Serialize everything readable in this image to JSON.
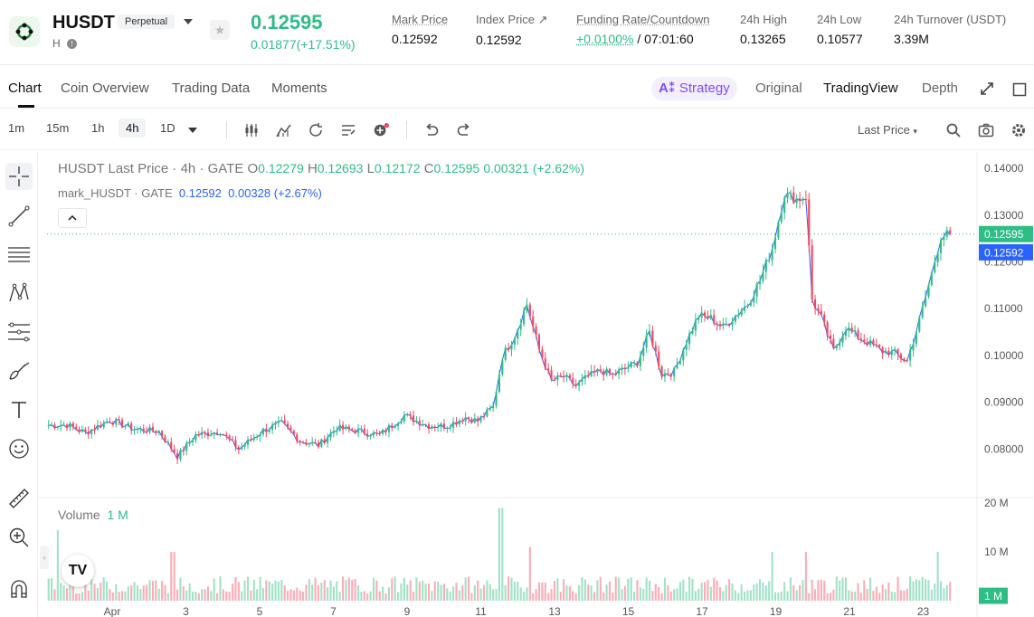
{
  "header": {
    "symbol": "HUSDT",
    "badge": "Perpetual",
    "sub": "H",
    "last_price": "0.12595",
    "change": "0.01877(+17.51%)",
    "stats": [
      {
        "label": "Mark Price",
        "value": "0.12592"
      },
      {
        "label": "Index Price ↗",
        "value": "0.12592"
      },
      {
        "label": "Funding Rate/Countdown",
        "value_green": "+0.0100%",
        "value_rest": " / 07:01:60"
      },
      {
        "label": "24h High",
        "value": "0.13265"
      },
      {
        "label": "24h Low",
        "value": "0.10577"
      },
      {
        "label": "24h Turnover (USDT)",
        "value": "3.39M"
      }
    ]
  },
  "tabs": {
    "items": [
      "Chart",
      "Coin Overview",
      "Trading Data",
      "Moments"
    ],
    "strategy": "Strategy",
    "views": [
      "Original",
      "TradingView",
      "Depth"
    ]
  },
  "toolbar": {
    "timeframes": [
      "1m",
      "15m",
      "1h",
      "4h",
      "1D"
    ],
    "active_timeframe": "4h",
    "price_type": "Last Price"
  },
  "legend": {
    "main_title": "HUSDT Last Price · 4h · GATE",
    "o_label": "O",
    "o": "0.12279",
    "h_label": "H",
    "h": "0.12693",
    "l_label": "L",
    "l": "0.12172",
    "c_label": "C",
    "c": "0.12595",
    "chg": "0.00321 (+2.62%)",
    "mark_title": "mark_HUSDT · GATE",
    "mark_value": "0.12592",
    "mark_chg": "0.00328 (+2.67%)",
    "volume_label": "Volume",
    "volume_value": "1 M"
  },
  "chart_data": {
    "type": "candlestick",
    "timeframe": "4h",
    "x_tick_labels": [
      "Apr",
      "3",
      "5",
      "7",
      "9",
      "11",
      "13",
      "15",
      "17",
      "19",
      "21",
      "23"
    ],
    "price_axis_labels": [
      "0.14000",
      "0.13000",
      "0.12000",
      "0.11000",
      "0.10000",
      "0.09000",
      "0.08000"
    ],
    "price_axis_values": [
      0.14,
      0.13,
      0.12,
      0.11,
      0.1,
      0.09,
      0.08
    ],
    "ylim": [
      0.07,
      0.1435
    ],
    "last_price_tag": "0.12595",
    "mark_price_tag": "0.12592",
    "volume_axis_labels": [
      "20 M",
      "10 M"
    ],
    "volume_axis_values": [
      20,
      10
    ],
    "volume_tag": "1 M",
    "volume_ylim_millions": [
      0,
      20
    ],
    "close_anchors": [
      [
        0,
        0.0851
      ],
      [
        6,
        0.0852
      ],
      [
        12,
        0.0835
      ],
      [
        20,
        0.0862
      ],
      [
        28,
        0.0843
      ],
      [
        36,
        0.0838
      ],
      [
        42,
        0.0784
      ],
      [
        48,
        0.083
      ],
      [
        56,
        0.0838
      ],
      [
        62,
        0.08
      ],
      [
        70,
        0.084
      ],
      [
        76,
        0.0855
      ],
      [
        82,
        0.0818
      ],
      [
        88,
        0.0808
      ],
      [
        94,
        0.0845
      ],
      [
        100,
        0.084
      ],
      [
        108,
        0.083
      ],
      [
        116,
        0.0872
      ],
      [
        124,
        0.085
      ],
      [
        130,
        0.085
      ],
      [
        136,
        0.0868
      ],
      [
        140,
        0.086
      ],
      [
        145,
        0.089
      ],
      [
        148,
        0.0998
      ],
      [
        152,
        0.1042
      ],
      [
        156,
        0.111
      ],
      [
        160,
        0.1012
      ],
      [
        164,
        0.0945
      ],
      [
        168,
        0.0955
      ],
      [
        172,
        0.0935
      ],
      [
        176,
        0.0955
      ],
      [
        180,
        0.0968
      ],
      [
        184,
        0.0958
      ],
      [
        188,
        0.0972
      ],
      [
        192,
        0.0985
      ],
      [
        196,
        0.105
      ],
      [
        200,
        0.096
      ],
      [
        204,
        0.0965
      ],
      [
        208,
        0.103
      ],
      [
        212,
        0.1085
      ],
      [
        216,
        0.108
      ],
      [
        220,
        0.106
      ],
      [
        224,
        0.1085
      ],
      [
        228,
        0.111
      ],
      [
        232,
        0.116
      ],
      [
        236,
        0.123
      ],
      [
        240,
        0.1345
      ],
      [
        244,
        0.1335
      ],
      [
        247,
        0.134
      ],
      [
        249,
        0.112
      ],
      [
        252,
        0.108
      ],
      [
        256,
        0.101
      ],
      [
        260,
        0.106
      ],
      [
        264,
        0.104
      ],
      [
        268,
        0.1025
      ],
      [
        272,
        0.101
      ],
      [
        276,
        0.1005
      ],
      [
        280,
        0.0988
      ],
      [
        284,
        0.1075
      ],
      [
        288,
        0.1175
      ],
      [
        291,
        0.1255
      ],
      [
        294,
        0.126
      ]
    ],
    "volume_spikes_millions": [
      [
        3,
        14.5
      ],
      [
        40,
        10
      ],
      [
        41,
        10
      ],
      [
        147,
        19
      ],
      [
        148,
        19
      ],
      [
        157,
        11
      ],
      [
        236,
        10
      ],
      [
        247,
        10
      ],
      [
        290,
        10
      ]
    ]
  }
}
